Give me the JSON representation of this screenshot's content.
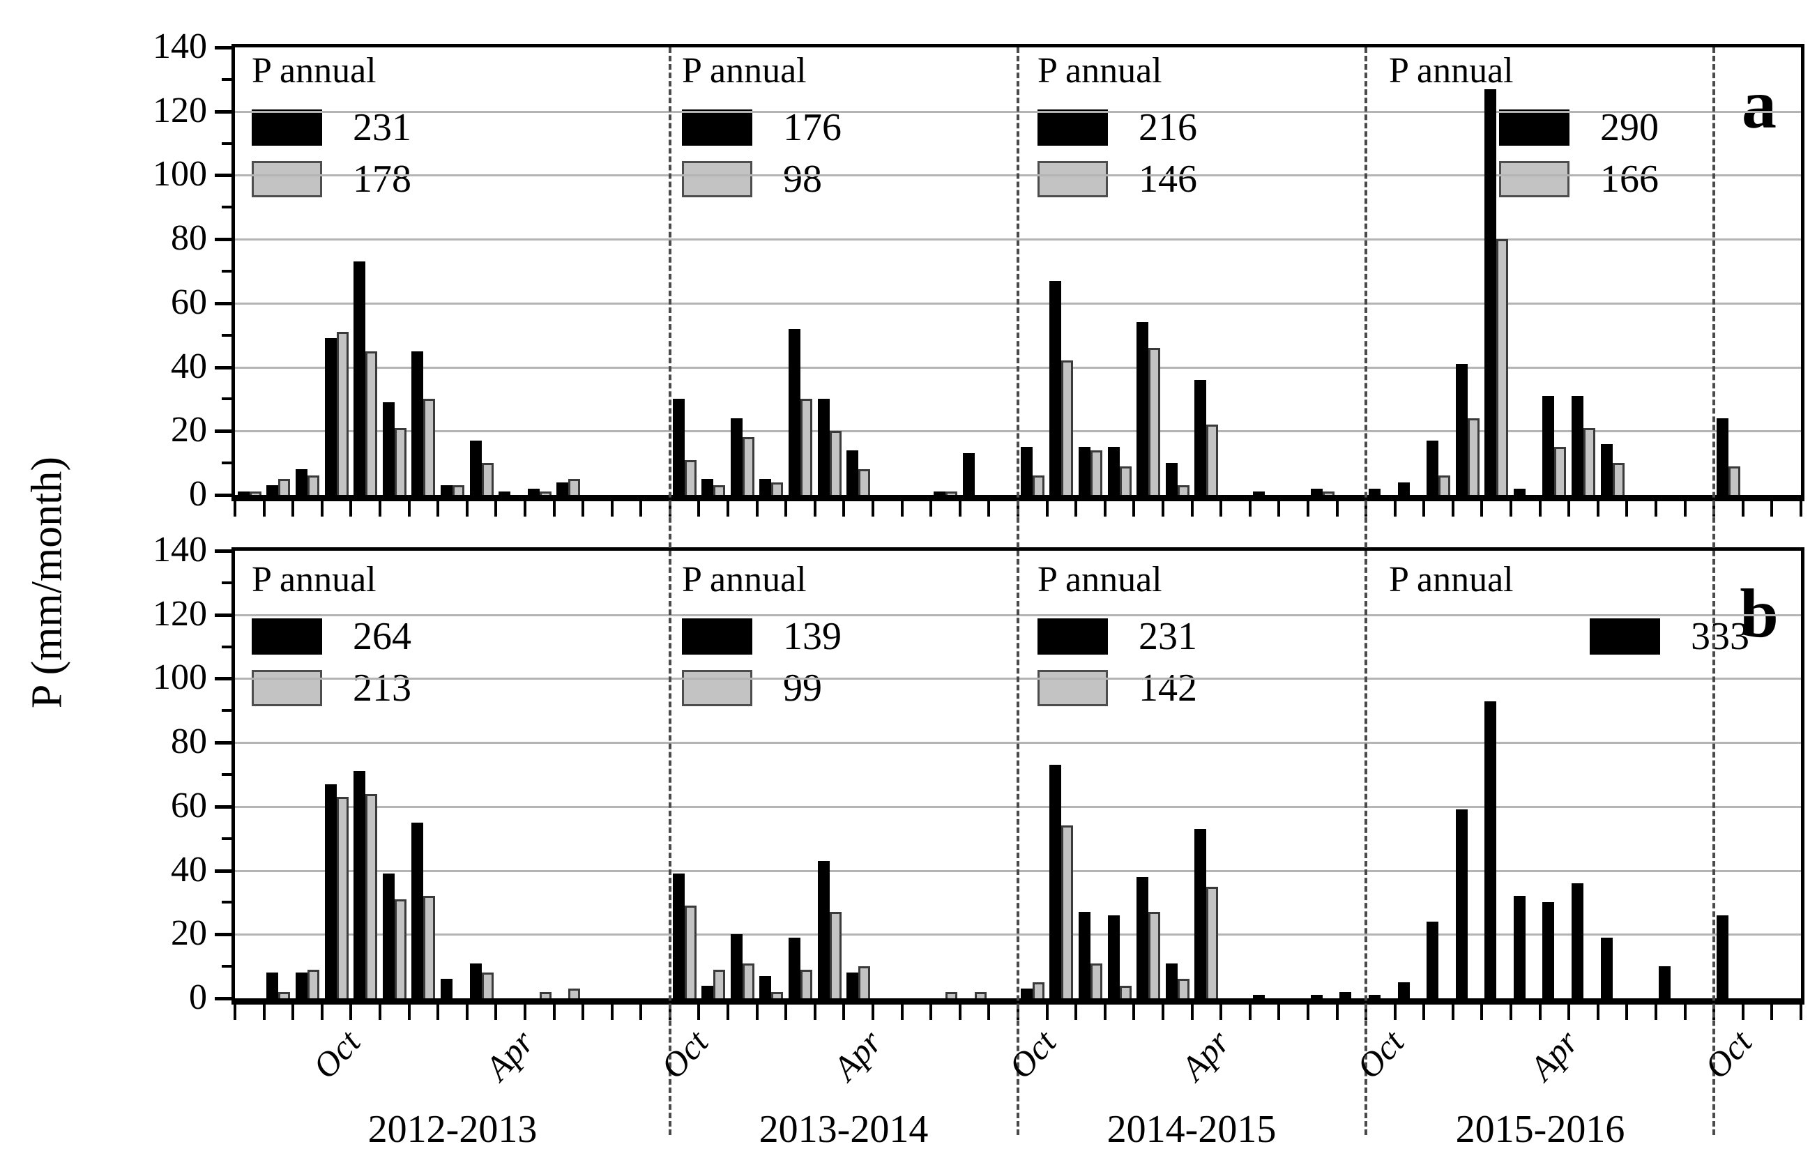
{
  "figure": {
    "y_axis_label": "P (mm/month)",
    "legend_title": "P annual",
    "panel_letters": {
      "top": "a",
      "bottom": "b"
    },
    "year_labels": [
      "2012-2013",
      "2013-2014",
      "2014-2015",
      "2015-2016"
    ],
    "y_tick_labels": [
      0,
      20,
      40,
      60,
      80,
      100,
      120,
      140
    ],
    "month_tick_labels": [
      {
        "index": 3,
        "text": "Oct"
      },
      {
        "index": 9,
        "text": "Apr"
      },
      {
        "index": 15,
        "text": "Oct"
      },
      {
        "index": 21,
        "text": "Apr"
      },
      {
        "index": 27,
        "text": "Oct"
      },
      {
        "index": 33,
        "text": "Apr"
      },
      {
        "index": 39,
        "text": "Oct"
      },
      {
        "index": 45,
        "text": "Apr"
      },
      {
        "index": 51,
        "text": "Oct"
      }
    ]
  },
  "chart_data": [
    {
      "type": "bar",
      "panel": "a",
      "ylabel": "P (mm/month)",
      "ylim": [
        0,
        140
      ],
      "y_tick_step": 20,
      "grid": "horizontal",
      "n_months": 54,
      "sections": [
        {
          "label": "2012-2013",
          "start_index": 3
        },
        {
          "label": "2013-2014",
          "start_index": 15
        },
        {
          "label": "2014-2015",
          "start_index": 27
        },
        {
          "label": "2015-2016",
          "start_index": 39
        }
      ],
      "dashed_separator_indices": [
        15,
        27,
        39,
        51
      ],
      "series": [
        {
          "name": "black",
          "color": "#000000",
          "values": [
            1,
            3,
            8,
            49,
            73,
            29,
            45,
            3,
            17,
            1,
            2,
            4,
            0,
            0,
            0,
            30,
            5,
            24,
            5,
            52,
            30,
            14,
            0,
            0,
            1,
            13,
            0,
            15,
            67,
            15,
            15,
            54,
            10,
            36,
            0,
            1,
            0,
            2,
            0,
            2,
            4,
            17,
            41,
            127,
            2,
            31,
            31,
            16,
            0,
            0,
            0,
            24,
            0,
            0
          ]
        },
        {
          "name": "gray",
          "color": "#c3c3c3",
          "values": [
            1,
            5,
            6,
            51,
            45,
            21,
            30,
            3,
            10,
            0,
            1,
            5,
            0,
            0,
            0,
            11,
            3,
            18,
            4,
            30,
            20,
            8,
            0,
            0,
            1,
            0,
            0,
            6,
            42,
            14,
            9,
            46,
            3,
            22,
            0,
            0,
            0,
            1,
            0,
            0,
            0,
            6,
            24,
            80,
            0,
            15,
            21,
            10,
            0,
            0,
            0,
            9,
            0,
            0
          ]
        }
      ],
      "annual_legends": [
        {
          "year": "2012-2013",
          "black": 231,
          "gray": 178
        },
        {
          "year": "2013-2014",
          "black": 176,
          "gray": 98
        },
        {
          "year": "2014-2015",
          "black": 216,
          "gray": 146
        },
        {
          "year": "2015-2016",
          "black": 290,
          "gray": 166
        }
      ]
    },
    {
      "type": "bar",
      "panel": "b",
      "ylabel": "P (mm/month)",
      "ylim": [
        0,
        140
      ],
      "y_tick_step": 20,
      "grid": "horizontal",
      "n_months": 54,
      "sections": [
        {
          "label": "2012-2013",
          "start_index": 3
        },
        {
          "label": "2013-2014",
          "start_index": 15
        },
        {
          "label": "2014-2015",
          "start_index": 27
        },
        {
          "label": "2015-2016",
          "start_index": 39
        }
      ],
      "dashed_separator_indices": [
        15,
        27,
        39,
        51
      ],
      "series": [
        {
          "name": "black",
          "color": "#000000",
          "values": [
            0,
            8,
            8,
            67,
            71,
            39,
            55,
            6,
            11,
            0,
            0,
            0,
            0,
            0,
            0,
            39,
            4,
            20,
            7,
            19,
            43,
            8,
            0,
            0,
            0,
            0,
            0,
            3,
            73,
            27,
            26,
            38,
            11,
            53,
            0,
            1,
            0,
            1,
            2,
            1,
            5,
            24,
            59,
            93,
            32,
            30,
            36,
            19,
            0,
            10,
            0,
            26,
            0,
            0
          ]
        },
        {
          "name": "gray",
          "color": "#c3c3c3",
          "values": [
            0,
            2,
            9,
            63,
            64,
            31,
            32,
            0,
            8,
            0,
            2,
            3,
            0,
            0,
            0,
            29,
            9,
            11,
            2,
            9,
            27,
            10,
            0,
            0,
            2,
            2,
            0,
            5,
            54,
            11,
            4,
            27,
            6,
            35,
            0,
            0,
            0,
            0,
            0,
            0,
            0,
            0,
            0,
            0,
            0,
            0,
            0,
            0,
            0,
            0,
            0,
            0,
            0,
            0
          ]
        }
      ],
      "annual_legends": [
        {
          "year": "2012-2013",
          "black": 264,
          "gray": 213
        },
        {
          "year": "2013-2014",
          "black": 139,
          "gray": 99
        },
        {
          "year": "2014-2015",
          "black": 231,
          "gray": 142
        },
        {
          "year": "2015-2016",
          "black": 333,
          "gray": null
        }
      ]
    }
  ]
}
